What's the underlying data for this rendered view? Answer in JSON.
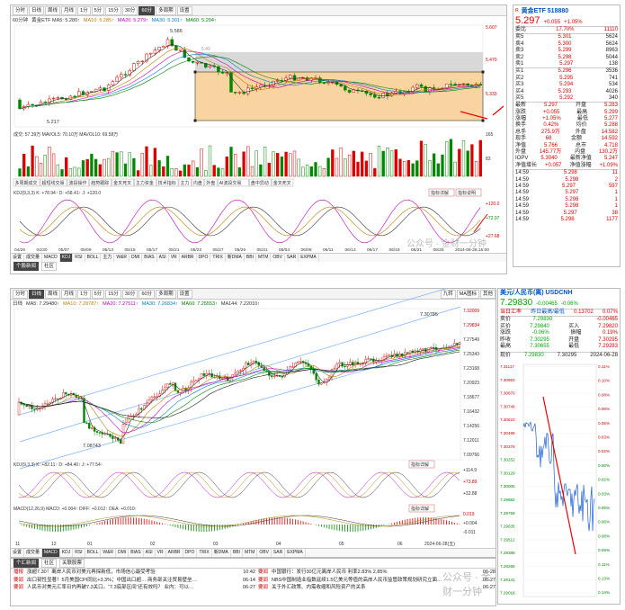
{
  "top": {
    "tabs": [
      "分时",
      "日线",
      "周线",
      "月线",
      "1分",
      "5分",
      "15分",
      "30分",
      "60分",
      "多周期",
      "设置"
    ],
    "active_tab": "60分",
    "legend_main": [
      {
        "text": "60分钟",
        "color": "#333"
      },
      {
        "text": "黄金ETF MA5: 5.280↑",
        "color": "#333"
      },
      {
        "text": "MA10: 5.285↑",
        "color": "#c08000"
      },
      {
        "text": "MA20: 5.279↑",
        "color": "#c000c0"
      },
      {
        "text": "MA30: 5.301↑",
        "color": "#0080c0"
      },
      {
        "text": "MA60: 5.294↑",
        "color": "#008000"
      }
    ],
    "annotations": {
      "high": "5.586",
      "low": "5.217",
      "box_label": "5.49"
    },
    "price_axis": [
      "5.607",
      "5.470",
      "5.333",
      "165"
    ],
    "volume_legend": "成交: 57.39万  MAVOL5: 70.10万  MAVOL10: 69.58万",
    "volume_axis": [
      "83"
    ],
    "sub_tabs": [
      "多周期成交",
      "超短线交易",
      "波段操作",
      "趋势跟踪",
      "金叉死叉",
      "主力资金",
      "技术指标",
      "主力",
      "内盘",
      "外盘",
      "AI波段交易",
      "盘中异动",
      "金叉死叉"
    ],
    "kdj_legend": "KDJ(9,3,3)  K: +78.94↑  D: +58.41↑  J: +120.0",
    "kdj_buttons": [
      "指标详解",
      "指标说明"
    ],
    "kdj_axis": [
      "+120.0",
      "+72.97",
      "+27.68"
    ],
    "x_labels": [
      "04/26",
      "04/30",
      "05/07",
      "05/09",
      "05/13",
      "05/15",
      "05/17",
      "05/21",
      "05/23",
      "05/27",
      "05/29",
      "05/31",
      "06/04",
      "06/06",
      "06/11",
      "06/13",
      "06/17",
      "06/19",
      "06/21",
      "06/25",
      "2024-06-28,15:00"
    ],
    "indicator_tabs": [
      "设置",
      "成交量",
      "MACD",
      "KDJ",
      "RSI",
      "BOLL",
      "主力",
      "W&R",
      "DMI",
      "BIAS",
      "ASI",
      "VR",
      "ARBR",
      "DPO",
      "TRIX",
      "新DMA",
      "BBI",
      "MTM",
      "OBV",
      "SAR",
      "EXPMA"
    ],
    "indicator_active": "KDJ",
    "bottom_tabs": [
      "个股新闻",
      "社区"
    ],
    "watermark": "公众号 · 金财一分钟",
    "colors": {
      "up": "#dd0000",
      "down": "#008800",
      "box": "#f5c680",
      "grey_box": "#d8d8d8"
    }
  },
  "etf": {
    "name": "黄金ETF 518880",
    "price": "5.297",
    "change": "+0.055",
    "change_pct": "+1.05%",
    "header_left": "委比",
    "webi": "17.70%",
    "weicha": "11110",
    "asks": [
      {
        "label": "卖5",
        "price": "5.301",
        "vol": "5624"
      },
      {
        "label": "卖4",
        "price": "5.300",
        "vol": "5624"
      },
      {
        "label": "卖3",
        "price": "5.299",
        "vol": "8963"
      },
      {
        "label": "卖2",
        "price": "5.298",
        "vol": "5044"
      },
      {
        "label": "卖1",
        "price": "5.297",
        "vol": "138"
      }
    ],
    "bids": [
      {
        "label": "买1",
        "price": "5.296",
        "vol": "3536"
      },
      {
        "label": "买2",
        "price": "5.295",
        "vol": "741"
      },
      {
        "label": "买3",
        "price": "5.294",
        "vol": "534"
      },
      {
        "label": "买4",
        "price": "5.293",
        "vol": "4026"
      },
      {
        "label": "买5",
        "price": "5.292",
        "vol": "340"
      }
    ],
    "stats": [
      {
        "k": "最新",
        "v": "5.297",
        "k2": "开盘",
        "v2": "5.283"
      },
      {
        "k": "涨跌",
        "v": "+0.055",
        "k2": "最高",
        "v2": "5.299"
      },
      {
        "k": "涨幅",
        "v": "+1.05%",
        "k2": "最低",
        "v2": "5.277"
      },
      {
        "k": "换手",
        "v": "0.42%",
        "k2": "均价",
        "v2": "5.288"
      },
      {
        "k": "总手",
        "v": "275.9万",
        "k2": "外盘",
        "v2": "14.582"
      },
      {
        "k": "现手",
        "v": "68",
        "k2": "金额",
        "v2": "14.592"
      },
      {
        "k": "净值",
        "v": "5.766",
        "k2": "总市",
        "v2": "4.718"
      },
      {
        "k": "外盘",
        "v": "145.77万",
        "k2": "内盘",
        "v2": "130.2万"
      },
      {
        "k": "IOPV",
        "v": "5.3040",
        "k2": "最新净值",
        "v2": "5.247"
      },
      {
        "k": "净值增长",
        "v": "+0.057",
        "k2": "净值涨幅",
        "v2": "+1.09%"
      }
    ],
    "ticks": [
      {
        "t": "14:59",
        "p": "5.298",
        "v": "11"
      },
      {
        "t": "14:59",
        "p": "5.298",
        "v": "2"
      },
      {
        "t": "14:59",
        "p": "5.297",
        "v": "597"
      },
      {
        "t": "14:59",
        "p": "5.297",
        "v": "1"
      },
      {
        "t": "14:59",
        "p": "5.298",
        "v": "1"
      },
      {
        "t": "14:59",
        "p": "5.298",
        "v": "1"
      },
      {
        "t": "14:59",
        "p": "5.297",
        "v": "38"
      },
      {
        "t": "14:59",
        "p": "5.298",
        "v": "1177"
      }
    ]
  },
  "bottom": {
    "tabs": [
      "分时",
      "日线",
      "周线",
      "月线",
      "1分",
      "5分",
      "15分",
      "30分",
      "60分",
      "多周期",
      "设置"
    ],
    "active_tab": "日线",
    "toolbar_right": [
      "九转",
      "MA图标",
      "其他"
    ],
    "legend_main": [
      {
        "text": "日线",
        "color": "#333"
      },
      {
        "text": "MA5: 7.29480↑",
        "color": "#333"
      },
      {
        "text": "MA10: 7.28787↑",
        "color": "#c08000"
      },
      {
        "text": "MA20: 7.27511↑",
        "color": "#c000c0"
      },
      {
        "text": "MA30: 7.26834↑",
        "color": "#0080c0"
      },
      {
        "text": "MA60: 7.25553↑",
        "color": "#008000"
      },
      {
        "text": "MA144: 7.22010↑",
        "color": "#333"
      }
    ],
    "annotations": {
      "high": "7.30785",
      "low": "7.08743"
    },
    "price_axis": [
      "7.32009",
      "7.29834",
      "7.27549",
      "7.25343",
      "7.23168",
      "7.20923",
      "7.18677",
      "7.16432",
      "7.14256",
      "7.12011",
      "7.09766"
    ],
    "kdj_legend": "KDJ(9,3,3)  K: +82.11↑  D: +84.40↑  J: +77.54↑",
    "kdj_buttons": [
      "指标详解"
    ],
    "kdj_axis": [
      "+114.9",
      "+73.89",
      "+32.88"
    ],
    "macd_legend": "MACD(12,26,9)  MACD: +0.004↑  DIFF: +0.012↑  DEA: +0.010↑",
    "macd_buttons": [
      "指标详解"
    ],
    "macd_axis": [
      "0.019",
      "+0.004",
      "-0.011"
    ],
    "x_labels": [
      "11",
      "12",
      "01",
      "02",
      "03",
      "04",
      "05",
      "06",
      "2024-06-28(五)"
    ],
    "indicator_tabs": [
      "设置",
      "成交量",
      "MACD",
      "KDJ",
      "RSI",
      "BOLL",
      "W&R",
      "DMI",
      "BIAS",
      "ASI",
      "VR",
      "ARBR",
      "DPO",
      "TRIX",
      "新DMA",
      "BBI",
      "MTM",
      "OBV",
      "SAR",
      "EXPMA"
    ],
    "indicator_active": "MACD",
    "bottom_tabs": [
      "个汇新闻",
      "社区",
      "关联股票"
    ],
    "news_left": [
      {
        "tag": "播报",
        "title": "涨超7.30！离岸人民币对美元再探新低，市场信心最受考验",
        "time": "10:42"
      },
      {
        "tag": "要闻",
        "title": "出口韧性显著！5月美国CPI同比+3.3%；中国出口超… 商务部关注贸易壁垒…",
        "time": "06-14"
      },
      {
        "tag": "要闻",
        "title": "人民币对美元汇率日内再破7.3关口。“7.3底部区间”还有效吗？ 业内：可以…",
        "time": "06-27"
      }
    ],
    "news_right": [
      {
        "tag": "要闻",
        "title": "中国银行：发行30亿元离岸人民币 利率2.83% 2.85%",
        "time": "06-28"
      },
      {
        "tag": "要闻",
        "title": "NBS中国制造业指数延续1.5亿美元等值的高岸人民币监管政策规划研究立面…",
        "time": "06-27"
      },
      {
        "tag": "要闻",
        "title": "关于外汇政策、内需收缩和风险资产的关系",
        "time": "06-27"
      }
    ],
    "watermark": "公众号 · 金财一分钟"
  },
  "cnh": {
    "name": "美元/人民币(离) USDCNH",
    "price": "7.29830",
    "change": "-0.00465",
    "change_pct": "-0.06%",
    "subheader": {
      "k": "当日汇率",
      "v": "昨日最高/最低",
      "k2": "0.13702",
      "v2": "0.07%"
    },
    "stats": [
      {
        "k": "卖价",
        "v": "7.29830",
        "k2": "",
        "v2": "-0.00465"
      },
      {
        "k": "买价",
        "v": "7.29840",
        "k2": "买入",
        "v2": "7.29820"
      },
      {
        "k": "涨跌",
        "v": "-0.06%",
        "k2": "振幅",
        "v2": "0.19%"
      },
      {
        "k": "昨收",
        "v": "7.30295",
        "k2": "开盘",
        "v2": "7.30295"
      },
      {
        "k": "最高",
        "v": "7.30655",
        "k2": "最低",
        "v2": "7.29283"
      }
    ],
    "intraday_header": {
      "k": "现价",
      "v": "7.29830",
      "v2": "7.30295",
      "date": "2024-06-28"
    },
    "intraday_axis_left": [
      "7.31117",
      "7.30993",
      "7.30870",
      "7.30746",
      "7.30623",
      "7.30499",
      "7.30376",
      "7.30252",
      "7.30129",
      "7.30005",
      "7.29882",
      "7.29759",
      "7.29635",
      "7.29512",
      "7.29388",
      "7.29265",
      "7.29141",
      "7.29018"
    ],
    "intraday_axis_right": [
      "0.11%",
      "0.10%",
      "0.08%",
      "0.06%",
      "0.05%",
      "0.03%",
      "0.02%",
      "0.00%",
      "0.02%",
      "0.03%",
      "0.05%",
      "0.06%",
      "0.08%",
      "0.09%",
      "0.11%",
      "0.13%",
      "0.14%"
    ]
  }
}
